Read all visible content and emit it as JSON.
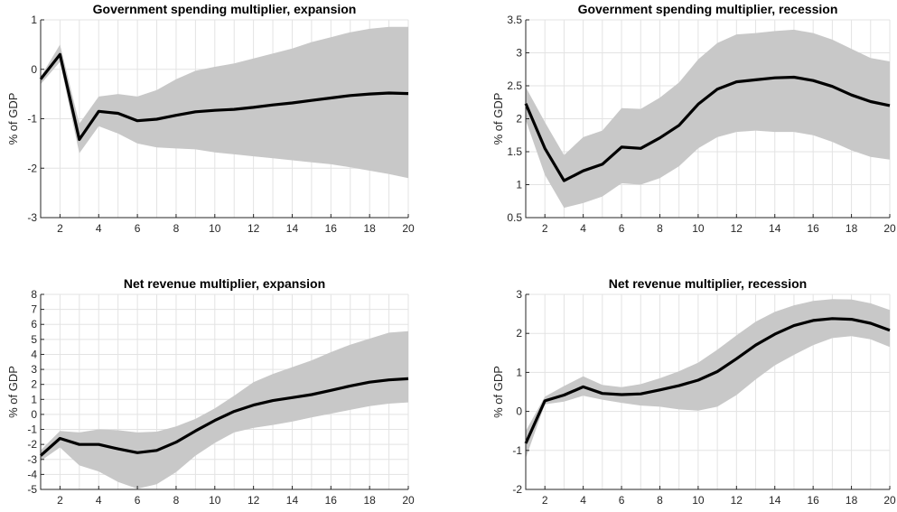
{
  "chart_data": [
    {
      "type": "area",
      "title": "Government spending multiplier, expansion",
      "ylabel": "% of GDP",
      "xlim": [
        1,
        20
      ],
      "ylim": [
        -3,
        1
      ],
      "xticks": [
        2,
        4,
        6,
        8,
        10,
        12,
        14,
        16,
        18,
        20
      ],
      "yticks": [
        -3,
        -2,
        -1,
        0,
        1
      ],
      "grid": true,
      "x": [
        1,
        2,
        3,
        4,
        5,
        6,
        7,
        8,
        9,
        10,
        11,
        12,
        13,
        14,
        15,
        16,
        17,
        18,
        19,
        20
      ],
      "series": [
        {
          "values": [
            -0.2,
            0.3,
            -1.42,
            -0.85,
            -0.89,
            -1.04,
            -1.01,
            -0.93,
            -0.86,
            -0.83,
            -0.81,
            -0.77,
            -0.72,
            -0.68,
            -0.63,
            -0.58,
            -0.53,
            -0.5,
            -0.48,
            -0.49
          ]
        },
        {
          "values": [
            -0.15,
            0.5,
            -1.1,
            -0.55,
            -0.5,
            -0.55,
            -0.42,
            -0.2,
            -0.03,
            0.05,
            0.12,
            0.22,
            0.32,
            0.42,
            0.55,
            0.65,
            0.75,
            0.82,
            0.86,
            0.86
          ]
        },
        {
          "values": [
            -0.3,
            0.15,
            -1.7,
            -1.15,
            -1.3,
            -1.5,
            -1.58,
            -1.6,
            -1.62,
            -1.68,
            -1.72,
            -1.76,
            -1.8,
            -1.84,
            -1.88,
            -1.92,
            -1.98,
            -2.05,
            -2.12,
            -2.2
          ]
        }
      ]
    },
    {
      "type": "area",
      "title": "Government spending multiplier, recession",
      "ylabel": "% of GDP",
      "xlim": [
        1,
        20
      ],
      "ylim": [
        0.5,
        3.5
      ],
      "xticks": [
        2,
        4,
        6,
        8,
        10,
        12,
        14,
        16,
        18,
        20
      ],
      "yticks": [
        0.5,
        1,
        1.5,
        2,
        2.5,
        3,
        3.5
      ],
      "grid": true,
      "x": [
        1,
        2,
        3,
        4,
        5,
        6,
        7,
        8,
        9,
        10,
        11,
        12,
        13,
        14,
        15,
        16,
        17,
        18,
        19,
        20
      ],
      "series": [
        {
          "values": [
            2.23,
            1.55,
            1.06,
            1.21,
            1.31,
            1.57,
            1.55,
            1.71,
            1.9,
            2.22,
            2.45,
            2.56,
            2.59,
            2.62,
            2.63,
            2.58,
            2.49,
            2.36,
            2.26,
            2.2
          ]
        },
        {
          "values": [
            2.48,
            1.95,
            1.45,
            1.72,
            1.82,
            2.16,
            2.15,
            2.32,
            2.55,
            2.9,
            3.15,
            3.28,
            3.3,
            3.33,
            3.35,
            3.3,
            3.2,
            3.06,
            2.92,
            2.87
          ]
        },
        {
          "values": [
            1.98,
            1.15,
            0.65,
            0.72,
            0.82,
            1.02,
            1.0,
            1.1,
            1.28,
            1.55,
            1.72,
            1.8,
            1.82,
            1.8,
            1.8,
            1.75,
            1.65,
            1.52,
            1.42,
            1.38
          ]
        }
      ]
    },
    {
      "type": "area",
      "title": "Net revenue multiplier, expansion",
      "ylabel": "% of GDP",
      "xlim": [
        1,
        20
      ],
      "ylim": [
        -5,
        8
      ],
      "xticks": [
        2,
        4,
        6,
        8,
        10,
        12,
        14,
        16,
        18,
        20
      ],
      "yticks": [
        -5,
        -4,
        -3,
        -2,
        -1,
        0,
        1,
        2,
        3,
        4,
        5,
        6,
        7,
        8
      ],
      "grid": true,
      "x": [
        1,
        2,
        3,
        4,
        5,
        6,
        7,
        8,
        9,
        10,
        11,
        12,
        13,
        14,
        15,
        16,
        17,
        18,
        19,
        20
      ],
      "series": [
        {
          "values": [
            -2.75,
            -1.6,
            -2.0,
            -2.0,
            -2.3,
            -2.55,
            -2.4,
            -1.85,
            -1.1,
            -0.4,
            0.2,
            0.62,
            0.92,
            1.12,
            1.32,
            1.6,
            1.9,
            2.15,
            2.3,
            2.38
          ]
        },
        {
          "values": [
            -2.4,
            -1.1,
            -1.2,
            -1.0,
            -1.05,
            -1.2,
            -1.15,
            -0.8,
            -0.3,
            0.4,
            1.25,
            2.15,
            2.7,
            3.15,
            3.6,
            4.15,
            4.65,
            5.05,
            5.45,
            5.55
          ]
        },
        {
          "values": [
            -3.1,
            -2.2,
            -3.4,
            -3.8,
            -4.5,
            -4.95,
            -4.65,
            -3.85,
            -2.75,
            -1.9,
            -1.2,
            -0.9,
            -0.7,
            -0.48,
            -0.2,
            0.05,
            0.3,
            0.55,
            0.72,
            0.8
          ]
        }
      ]
    },
    {
      "type": "area",
      "title": "Net revenue multiplier, recession",
      "ylabel": "% of GDP",
      "xlim": [
        1,
        20
      ],
      "ylim": [
        -2,
        3
      ],
      "xticks": [
        2,
        4,
        6,
        8,
        10,
        12,
        14,
        16,
        18,
        20
      ],
      "yticks": [
        -2,
        -1,
        0,
        1,
        2,
        3
      ],
      "grid": true,
      "x": [
        1,
        2,
        3,
        4,
        5,
        6,
        7,
        8,
        9,
        10,
        11,
        12,
        13,
        14,
        15,
        16,
        17,
        18,
        19,
        20
      ],
      "series": [
        {
          "values": [
            -0.82,
            0.27,
            0.42,
            0.63,
            0.46,
            0.43,
            0.45,
            0.55,
            0.66,
            0.8,
            1.02,
            1.35,
            1.7,
            1.98,
            2.2,
            2.33,
            2.38,
            2.36,
            2.26,
            2.08
          ]
        },
        {
          "values": [
            -0.5,
            0.38,
            0.65,
            0.9,
            0.68,
            0.62,
            0.7,
            0.85,
            1.03,
            1.25,
            1.58,
            1.95,
            2.3,
            2.55,
            2.72,
            2.83,
            2.88,
            2.87,
            2.77,
            2.6
          ]
        },
        {
          "values": [
            -1.2,
            0.18,
            0.25,
            0.4,
            0.3,
            0.22,
            0.15,
            0.12,
            0.05,
            0.02,
            0.12,
            0.42,
            0.82,
            1.18,
            1.45,
            1.7,
            1.88,
            1.93,
            1.85,
            1.65
          ]
        }
      ]
    }
  ]
}
